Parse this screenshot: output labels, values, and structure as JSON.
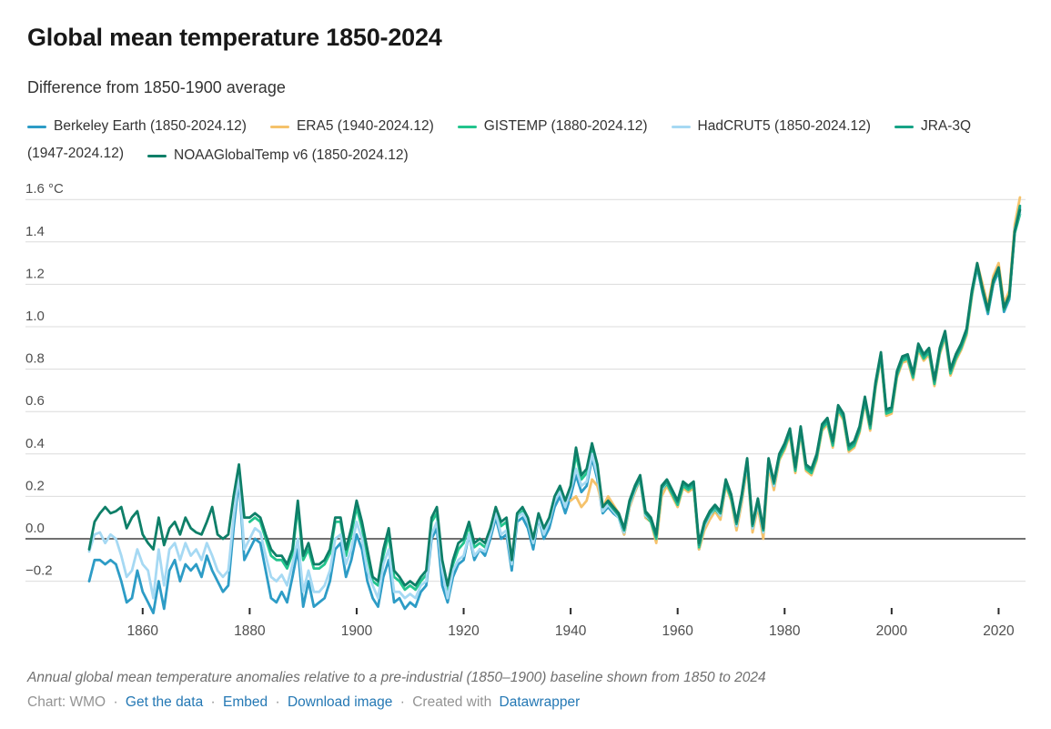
{
  "header": {
    "title": "Global mean temperature 1850-2024",
    "subtitle": "Difference from 1850-1900 average"
  },
  "legend": {
    "rows": [
      [
        {
          "color": "#2d9cc6",
          "label": "Berkeley Earth (1850-2024.12)"
        },
        {
          "color": "#f5c26b",
          "label": "ERA5 (1940-2024.12)"
        },
        {
          "color": "#23c48d",
          "label": "GISTEMP (1880-2024.12)"
        },
        {
          "color": "#a6d9f3",
          "label": "HadCRUT5 (1850-2024.12)"
        },
        {
          "color": "#17a386",
          "label": "JRA-3Q"
        }
      ],
      [
        {
          "color": null,
          "label": "(1947-2024.12)"
        },
        {
          "color": "#0e7f68",
          "label": "NOAAGlobalTemp v6 (1850-2024.12)"
        }
      ]
    ]
  },
  "chart_data": {
    "type": "line",
    "title": "Global mean temperature 1850-2024",
    "subtitle": "Difference from 1850-1900 average",
    "unit": "°C",
    "baseline_period": "1850-1900",
    "grid": true,
    "legend_position": "top",
    "x_axis": {
      "range": [
        1850,
        2024
      ],
      "ticks": [
        1860,
        1880,
        1900,
        1920,
        1940,
        1960,
        1980,
        2000,
        2020
      ]
    },
    "y_axis": {
      "range": [
        -0.36,
        1.68
      ],
      "zero_line": 0,
      "ticks": [
        {
          "value": 1.6,
          "label": "1.6 °C"
        },
        {
          "value": 1.4,
          "label": "1.4"
        },
        {
          "value": 1.2,
          "label": "1.2"
        },
        {
          "value": 1.0,
          "label": "1.0"
        },
        {
          "value": 0.8,
          "label": "0.8"
        },
        {
          "value": 0.6,
          "label": "0.6"
        },
        {
          "value": 0.4,
          "label": "0.4"
        },
        {
          "value": 0.2,
          "label": "0.2"
        },
        {
          "value": 0.0,
          "label": "0.0"
        },
        {
          "value": -0.2,
          "label": "−0.2"
        }
      ]
    },
    "series": [
      {
        "name": "Berkeley Earth (1850-2024.12)",
        "color": "#2d9cc6",
        "start_year": 1850,
        "values": [
          -0.2,
          -0.1,
          -0.1,
          -0.12,
          -0.1,
          -0.12,
          -0.2,
          -0.3,
          -0.28,
          -0.15,
          -0.25,
          -0.3,
          -0.35,
          -0.2,
          -0.33,
          -0.15,
          -0.1,
          -0.2,
          -0.12,
          -0.15,
          -0.12,
          -0.18,
          -0.08,
          -0.15,
          -0.2,
          -0.25,
          -0.22,
          0.05,
          0.28,
          -0.1,
          -0.05,
          0,
          -0.02,
          -0.15,
          -0.28,
          -0.3,
          -0.25,
          -0.3,
          -0.18,
          -0.05,
          -0.32,
          -0.2,
          -0.32,
          -0.3,
          -0.28,
          -0.2,
          -0.05,
          -0.02,
          -0.18,
          -0.1,
          0.02,
          -0.05,
          -0.2,
          -0.28,
          -0.32,
          -0.18,
          -0.1,
          -0.3,
          -0.28,
          -0.33,
          -0.3,
          -0.32,
          -0.25,
          -0.22,
          0,
          0.05,
          -0.22,
          -0.3,
          -0.18,
          -0.12,
          -0.1,
          0.02,
          -0.1,
          -0.05,
          -0.08,
          0,
          0.1,
          0,
          0.02,
          -0.15,
          0.08,
          0.1,
          0.05,
          -0.05,
          0.1,
          0,
          0.05,
          0.15,
          0.2,
          0.12,
          0.2,
          0.3,
          0.22,
          0.25,
          0.38,
          0.28,
          0.12,
          0.15,
          0.12,
          0.1,
          0.02,
          0.15,
          0.22,
          0.28,
          0.1,
          0.08,
          0,
          0.22,
          0.26,
          0.21,
          0.16,
          0.25,
          0.23,
          0.25,
          -0.05,
          0.05,
          0.1,
          0.14,
          0.1,
          0.26,
          0.19,
          0.05,
          0.18,
          0.35,
          0.04,
          0.16,
          0.02,
          0.35,
          0.24,
          0.38,
          0.43,
          0.5,
          0.32,
          0.51,
          0.33,
          0.31,
          0.38,
          0.52,
          0.55,
          0.44,
          0.61,
          0.57,
          0.42,
          0.44,
          0.51,
          0.65,
          0.52,
          0.72,
          0.86,
          0.59,
          0.6,
          0.77,
          0.84,
          0.85,
          0.76,
          0.9,
          0.85,
          0.88,
          0.73,
          0.88,
          0.96,
          0.78,
          0.85,
          0.9,
          0.97,
          1.15,
          1.28,
          1.16,
          1.06,
          1.2,
          1.26,
          1.07,
          1.13,
          1.46,
          1.56
        ]
      },
      {
        "name": "ERA5 (1940-2024.12)",
        "color": "#f5c26b",
        "start_year": 1940,
        "values": [
          0.18,
          0.2,
          0.15,
          0.18,
          0.28,
          0.25,
          0.15,
          0.2,
          0.16,
          0.12,
          0.02,
          0.15,
          0.22,
          0.28,
          0.1,
          0.08,
          -0.02,
          0.2,
          0.25,
          0.2,
          0.15,
          0.24,
          0.22,
          0.24,
          -0.05,
          0.04,
          0.09,
          0.13,
          0.09,
          0.25,
          0.18,
          0.04,
          0.17,
          0.34,
          0.03,
          0.15,
          0,
          0.34,
          0.23,
          0.37,
          0.42,
          0.49,
          0.31,
          0.5,
          0.32,
          0.3,
          0.37,
          0.51,
          0.54,
          0.43,
          0.6,
          0.56,
          0.41,
          0.43,
          0.5,
          0.64,
          0.51,
          0.71,
          0.85,
          0.58,
          0.59,
          0.76,
          0.83,
          0.84,
          0.75,
          0.89,
          0.84,
          0.87,
          0.72,
          0.87,
          0.95,
          0.77,
          0.84,
          0.89,
          0.96,
          1.14,
          1.3,
          1.2,
          1.1,
          1.24,
          1.3,
          1.11,
          1.17,
          1.48,
          1.61
        ]
      },
      {
        "name": "GISTEMP (1880-2024.12)",
        "color": "#23c48d",
        "start_year": 1880,
        "values": [
          0.08,
          0.1,
          0.08,
          0,
          -0.08,
          -0.1,
          -0.1,
          -0.14,
          -0.07,
          0.15,
          -0.1,
          -0.05,
          -0.14,
          -0.14,
          -0.12,
          -0.07,
          0.08,
          0.08,
          -0.08,
          0.02,
          0.15,
          0.05,
          -0.08,
          -0.2,
          -0.22,
          -0.08,
          0.02,
          -0.18,
          -0.2,
          -0.24,
          -0.22,
          -0.24,
          -0.2,
          -0.17,
          0.08,
          0.12,
          -0.12,
          -0.24,
          -0.12,
          -0.05,
          -0.02,
          0.06,
          -0.04,
          -0.02,
          -0.04,
          0.03,
          0.13,
          0.06,
          0.08,
          -0.12,
          0.1,
          0.13,
          0.08,
          -0.02,
          0.1,
          0.03,
          0.08,
          0.18,
          0.23,
          0.16,
          0.23,
          0.4,
          0.28,
          0.31,
          0.43,
          0.33,
          0.13,
          0.16,
          0.13,
          0.1,
          0.03,
          0.16,
          0.23,
          0.28,
          0.11,
          0.08,
          0,
          0.23,
          0.26,
          0.21,
          0.16,
          0.25,
          0.23,
          0.25,
          -0.04,
          0.06,
          0.11,
          0.14,
          0.11,
          0.26,
          0.19,
          0.06,
          0.19,
          0.36,
          0.05,
          0.17,
          0.03,
          0.36,
          0.25,
          0.38,
          0.43,
          0.5,
          0.32,
          0.51,
          0.33,
          0.31,
          0.38,
          0.52,
          0.55,
          0.44,
          0.61,
          0.57,
          0.42,
          0.44,
          0.51,
          0.65,
          0.52,
          0.72,
          0.86,
          0.59,
          0.6,
          0.77,
          0.84,
          0.85,
          0.76,
          0.9,
          0.85,
          0.88,
          0.73,
          0.88,
          0.96,
          0.78,
          0.85,
          0.9,
          0.97,
          1.15,
          1.29,
          1.17,
          1.07,
          1.21,
          1.27,
          1.08,
          1.14,
          1.44,
          1.53
        ]
      },
      {
        "name": "HadCRUT5 (1850-2024.12)",
        "color": "#a6d9f3",
        "start_year": 1850,
        "values": [
          -0.06,
          0.02,
          0.03,
          -0.02,
          0.02,
          0,
          -0.08,
          -0.18,
          -0.15,
          -0.05,
          -0.12,
          -0.15,
          -0.28,
          -0.05,
          -0.22,
          -0.05,
          -0.02,
          -0.1,
          -0.02,
          -0.08,
          -0.05,
          -0.1,
          -0.02,
          -0.08,
          -0.15,
          -0.18,
          -0.15,
          0.1,
          0.3,
          -0.05,
          0,
          0.05,
          0.03,
          -0.08,
          -0.18,
          -0.2,
          -0.17,
          -0.22,
          -0.12,
          0,
          -0.25,
          -0.15,
          -0.25,
          -0.25,
          -0.22,
          -0.15,
          0,
          0.02,
          -0.12,
          -0.05,
          0.08,
          0,
          -0.15,
          -0.22,
          -0.28,
          -0.12,
          -0.05,
          -0.25,
          -0.25,
          -0.28,
          -0.26,
          -0.28,
          -0.22,
          -0.2,
          0.02,
          0.08,
          -0.15,
          -0.28,
          -0.15,
          -0.1,
          -0.08,
          0.02,
          -0.08,
          -0.05,
          -0.06,
          0.02,
          0.12,
          0.02,
          0.04,
          -0.12,
          0.1,
          0.12,
          0.08,
          -0.02,
          0.1,
          0.02,
          0.08,
          0.18,
          0.22,
          0.15,
          0.23,
          0.33,
          0.25,
          0.27,
          0.4,
          0.3,
          0.13,
          0.16,
          0.13,
          0.1,
          0.03,
          0.16,
          0.23,
          0.29,
          0.11,
          0.09,
          0.01,
          0.23,
          0.27,
          0.22,
          0.17,
          0.26,
          0.24,
          0.26,
          -0.03,
          0.06,
          0.11,
          0.15,
          0.11,
          0.27,
          0.2,
          0.06,
          0.19,
          0.36,
          0.05,
          0.17,
          0.03,
          0.36,
          0.25,
          0.39,
          0.44,
          0.51,
          0.33,
          0.52,
          0.34,
          0.32,
          0.39,
          0.53,
          0.56,
          0.45,
          0.62,
          0.58,
          0.43,
          0.45,
          0.52,
          0.66,
          0.53,
          0.73,
          0.87,
          0.6,
          0.61,
          0.78,
          0.85,
          0.86,
          0.77,
          0.91,
          0.86,
          0.89,
          0.74,
          0.89,
          0.97,
          0.79,
          0.86,
          0.91,
          0.98,
          1.16,
          1.29,
          1.17,
          1.07,
          1.21,
          1.27,
          1.08,
          1.14,
          1.46,
          1.54
        ]
      },
      {
        "name": "JRA-3Q (1947-2024.12)",
        "color": "#17a386",
        "start_year": 1947,
        "values": [
          0.17,
          0.14,
          0.11,
          0.04,
          0.17,
          0.24,
          0.29,
          0.12,
          0.09,
          0.01,
          0.24,
          0.27,
          0.22,
          0.17,
          0.26,
          0.24,
          0.26,
          -0.03,
          0.07,
          0.12,
          0.15,
          0.12,
          0.27,
          0.2,
          0.07,
          0.2,
          0.37,
          0.06,
          0.18,
          0.04,
          0.37,
          0.26,
          0.39,
          0.44,
          0.51,
          0.33,
          0.52,
          0.34,
          0.32,
          0.39,
          0.53,
          0.56,
          0.45,
          0.62,
          0.58,
          0.43,
          0.45,
          0.52,
          0.66,
          0.53,
          0.73,
          0.87,
          0.6,
          0.61,
          0.78,
          0.85,
          0.86,
          0.77,
          0.91,
          0.86,
          0.89,
          0.74,
          0.89,
          0.97,
          0.79,
          0.86,
          0.91,
          0.98,
          1.16,
          1.29,
          1.17,
          1.07,
          1.21,
          1.27,
          1.08,
          1.14,
          1.45,
          1.57
        ]
      },
      {
        "name": "NOAAGlobalTemp v6 (1850-2024.12)",
        "color": "#0e7f68",
        "start_year": 1850,
        "values": [
          -0.05,
          0.08,
          0.12,
          0.15,
          0.12,
          0.13,
          0.15,
          0.05,
          0.1,
          0.13,
          0.02,
          -0.02,
          -0.05,
          0.1,
          -0.03,
          0.05,
          0.08,
          0.02,
          0.1,
          0.05,
          0.03,
          0.02,
          0.08,
          0.15,
          0.02,
          0,
          0.02,
          0.2,
          0.35,
          0.1,
          0.1,
          0.12,
          0.1,
          0.02,
          -0.05,
          -0.08,
          -0.08,
          -0.12,
          -0.05,
          0.18,
          -0.08,
          -0.02,
          -0.12,
          -0.12,
          -0.1,
          -0.05,
          0.1,
          0.1,
          -0.05,
          0.05,
          0.18,
          0.08,
          -0.05,
          -0.18,
          -0.2,
          -0.05,
          0.05,
          -0.15,
          -0.18,
          -0.22,
          -0.2,
          -0.22,
          -0.18,
          -0.15,
          0.1,
          0.15,
          -0.1,
          -0.22,
          -0.1,
          -0.02,
          0,
          0.08,
          -0.02,
          0,
          -0.02,
          0.05,
          0.15,
          0.08,
          0.1,
          -0.1,
          0.12,
          0.15,
          0.1,
          0,
          0.12,
          0.05,
          0.1,
          0.2,
          0.25,
          0.18,
          0.25,
          0.43,
          0.3,
          0.33,
          0.45,
          0.35,
          0.15,
          0.18,
          0.15,
          0.12,
          0.05,
          0.18,
          0.25,
          0.3,
          0.13,
          0.1,
          0.02,
          0.25,
          0.28,
          0.23,
          0.18,
          0.27,
          0.25,
          0.27,
          -0.02,
          0.08,
          0.13,
          0.16,
          0.13,
          0.28,
          0.21,
          0.08,
          0.21,
          0.38,
          0.07,
          0.19,
          0.05,
          0.38,
          0.27,
          0.4,
          0.45,
          0.52,
          0.34,
          0.53,
          0.35,
          0.33,
          0.4,
          0.54,
          0.57,
          0.46,
          0.63,
          0.59,
          0.44,
          0.46,
          0.53,
          0.67,
          0.54,
          0.74,
          0.88,
          0.61,
          0.62,
          0.79,
          0.86,
          0.87,
          0.78,
          0.92,
          0.87,
          0.9,
          0.75,
          0.9,
          0.98,
          0.8,
          0.87,
          0.92,
          0.99,
          1.17,
          1.3,
          1.18,
          1.08,
          1.22,
          1.28,
          1.09,
          1.15,
          1.45,
          1.55
        ]
      }
    ]
  },
  "footer": {
    "note": "Annual global mean temperature anomalies relative to a pre-industrial (1850–1900) baseline shown from 1850 to 2024",
    "byline": {
      "source": "Chart: WMO",
      "separator": "·",
      "links": [
        {
          "label": "Get the data"
        },
        {
          "label": "Embed"
        },
        {
          "label": "Download image"
        }
      ],
      "created_with": "Created with",
      "brand": "Datawrapper"
    }
  }
}
